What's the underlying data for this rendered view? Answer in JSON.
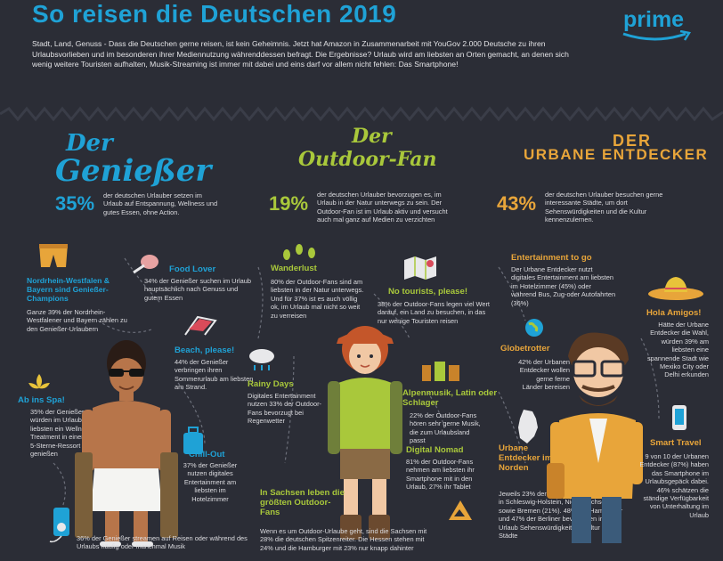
{
  "title": "So reisen die Deutschen 2019",
  "brand": {
    "name": "prime",
    "color": "#1fa2d6"
  },
  "intro": "Stadt, Land, Genuss - Dass die Deutschen gerne reisen, ist kein Geheimnis. Jetzt hat Amazon in Zusammenarbeit mit YouGov 2.000 Deutsche zu ihren Urlaubsvorlieben und im besonderen ihrer Mediennutzung währenddessen befragt. Die Ergebnisse? Urlaub wird am liebsten an Orten gemacht, an denen sich wenig weitere Touristen aufhalten, Musik-Streaming ist immer mit dabei und eins darf vor allem nicht fehlen: Das Smartphone!",
  "colors": {
    "blue": "#1fa2d6",
    "green": "#a9c83b",
    "orange": "#e8a53a",
    "background": "#2b2d36"
  },
  "geniesser": {
    "header_1": "Der",
    "header_2": "Genießer",
    "pct": "35%",
    "pct_text": "der deutschen Urlauber setzen im Urlaub auf Entspannung, Wellness und gutes Essen, ohne Action.",
    "nrw_head": "Nordrhein-Westfalen & Bayern sind Genießer-Champions",
    "nrw_text": "Ganze 39% der Nordrhein-Westfalener und Bayern zählen zu den Genießer-Urlaubern",
    "food_head": "Food Lover",
    "food_text": "34% der Genießer suchen im Urlaub hauptsächlich nach Genuss und gutem Essen",
    "beach_head": "Beach, please!",
    "beach_text": "44% der Genießer verbringen ihren Sommerurlaub am liebsten am Strand.",
    "spa_head": "Ab ins Spa!",
    "spa_text": "35% der Genießer würden im Urlaub am liebsten ein Wellness-Treatment in einem 5-Sterne-Ressort genießen",
    "chill_head": "Chill-Out",
    "chill_text": "37% der Genießer nutzen digitales Entertainment am liebsten im Hotelzimmer",
    "stream_text": "36% der Genießer streamen auf Reisen oder während des Urlaubs häufig oder manchmal Musik"
  },
  "outdoor": {
    "header_1": "Der",
    "header_2": "Outdoor-Fan",
    "pct": "19%",
    "pct_text": "der deutschen Urlauber bevorzugen es, im Urlaub in der Natur unterwegs zu sein. Der Outdoor-Fan ist im Urlaub aktiv und versucht auch mal ganz auf Medien zu verzichten",
    "wander_head": "Wanderlust",
    "wander_text": "80% der Outdoor-Fans sind am liebsten in der Natur unterwegs. Und für 37% ist es auch völlig ok, im Urlaub mal nicht so weit zu verreisen",
    "notourists_head": "No tourists, please!",
    "notourists_text": "38% der Outdoor-Fans legen viel Wert darauf, ein Land zu besuchen, in das nur wenige Touristen reisen",
    "rainy_head": "Rainy Days",
    "rainy_text": "Digitales Entertainment nutzen 33% der Outdoor-Fans bevorzugt bei Regenwetter",
    "alpen_head": "Alpenmusik, Latin oder Schlager",
    "alpen_text": "22% der Outdoor-Fans hören sehr gerne Musik, die zum Urlaubsland passt",
    "nomad_head": "Digital Nomad",
    "nomad_text": "81% der Outdoor-Fans nehmen am liebsten ihr Smartphone mit in den Urlaub, 27% ihr Tablet",
    "sachsen_head": "In Sachsen leben die größten Outdoor-Fans",
    "sachsen_text": "Wenn es um Outdoor-Urlaube geht, sind die Sachsen mit 28% die deutschen Spitzenreiter. Die Hessen stehen mit 24% und die Hamburger mit 23% nur knapp dahinter"
  },
  "urban": {
    "header_1": "DER",
    "header_2": "URBANE ENTDECKER",
    "pct": "43%",
    "pct_text": "der deutschen Urlauber besuchen gerne interessante Städte, um dort Sehenswürdigkeiten und die Kultur kennenzulernen.",
    "ent_head": "Entertainment to go",
    "ent_text": "Der Urbane Entdecker nutzt digitales Entertainment am liebsten im Hotelzimmer (45%) oder während Bus, Zug-oder Autofahrten (36%)",
    "hola_head": "Hola Amigos!",
    "hola_text": "Hätte der Urbane Entdecker die Wahl, würden 39% am liebsten eine spannende Stadt wie Mexiko City oder Delhi erkunden",
    "globe_head": "Globetrotter",
    "globe_text": "42% der Urbanen Entdecker wollen gerne ferne Länder bereisen",
    "nord_head": "Urbane Entdecker im Norden",
    "nord_text": "Jeweils 23% der Urbanen Entdecker leben in Schleswig-Holstein, Niedersachsen sowie Bremen (21%). 48% der Hamburger und 47% der Berliner bevorzugen im Urlaub Sehenswürdigkeiten, Kultur und Städte",
    "smart_head": "Smart Travel",
    "smart_text": "9 von 10 der Urbanen Entdecker (87%) haben das Smartphone im Urlaubsgepäck dabei. 46% schätzen die ständige Verfügbarkeit von Unterhaltung im Urlaub"
  }
}
